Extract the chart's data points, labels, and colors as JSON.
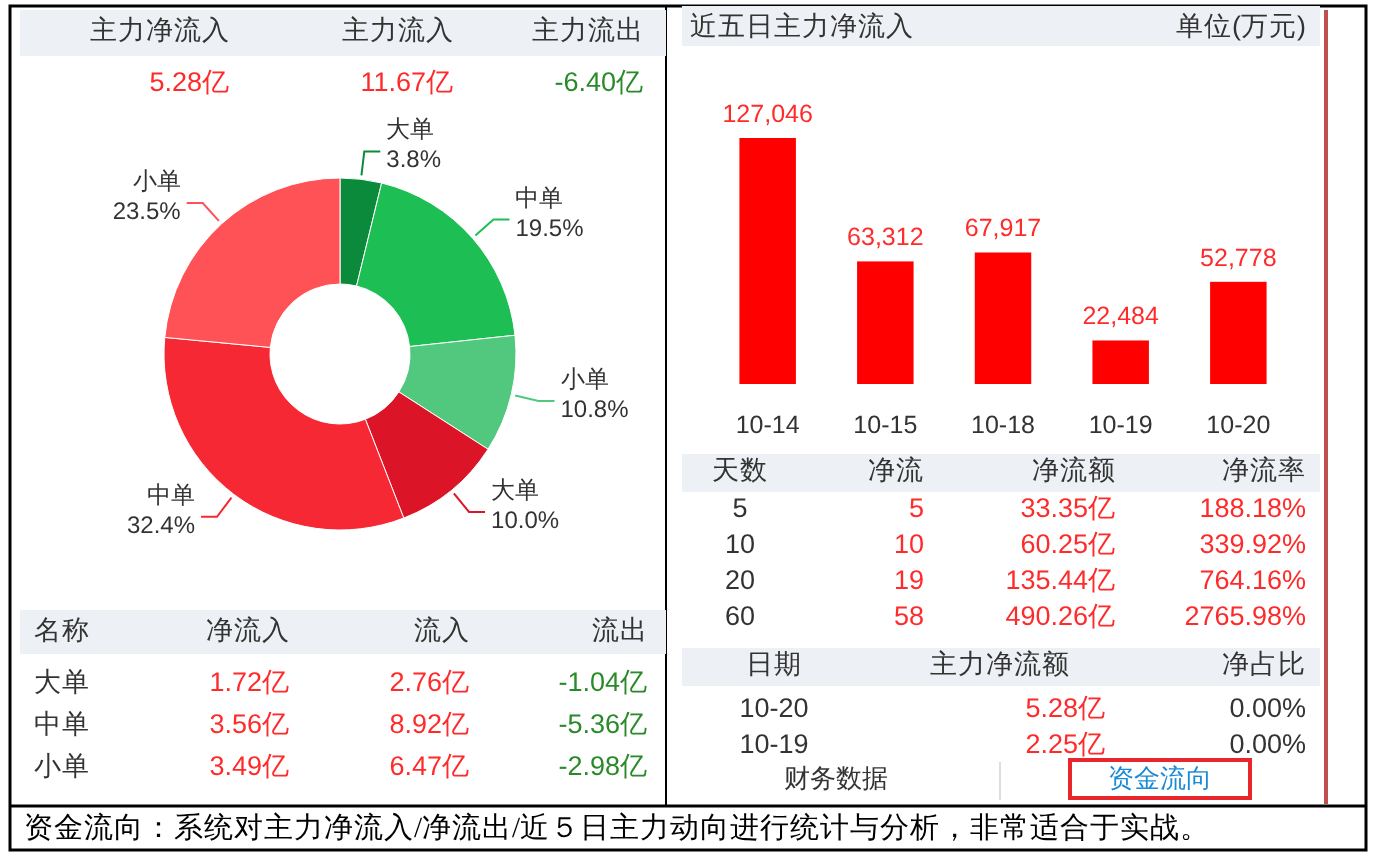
{
  "chart_data": [
    {
      "type": "other",
      "annotations": [
        "主力净流入",
        "主力流入",
        "主力流出",
        "5.28亿",
        "11.67亿",
        "-6.40亿"
      ]
    },
    {
      "type": "donut",
      "categories": [
        "大单",
        "中单",
        "小单",
        "大单",
        "中单",
        "小单"
      ],
      "values": [
        3.8,
        19.5,
        10.8,
        10.0,
        32.4,
        23.5
      ],
      "colors": [
        "#0b8a3c",
        "#1dbf55",
        "#52c77e",
        "#dc1428",
        "#f52834",
        "#ff5257"
      ],
      "value_labels": [
        "3.8%",
        "19.5%",
        "10.8%",
        "10.0%",
        "32.4%",
        "23.5%"
      ]
    },
    {
      "type": "other",
      "annotations": [
        "名称",
        "净流入",
        "流入",
        "流出",
        "大单",
        "1.72亿",
        "2.76亿",
        "-1.04亿",
        "中单",
        "3.56亿",
        "8.92亿",
        "-5.36亿",
        "小单",
        "3.49亿",
        "6.47亿",
        "-2.98亿"
      ]
    },
    {
      "type": "bar",
      "title": "近五日主力净流入",
      "subtitle": "单位(万元)",
      "categories": [
        "10-14",
        "10-15",
        "10-18",
        "10-19",
        "10-20"
      ],
      "values": [
        127046,
        63312,
        67917,
        22484,
        52778
      ],
      "color": "#ff0000",
      "value_labels": [
        "127,046",
        "63,312",
        "67,917",
        "22,484",
        "52,778"
      ]
    },
    {
      "type": "other",
      "annotations": [
        "天数",
        "净流",
        "净流额",
        "净流率",
        "5",
        "5",
        "33.35亿",
        "188.18%",
        "10",
        "10",
        "60.25亿",
        "339.92%",
        "20",
        "19",
        "135.44亿",
        "764.16%",
        "60",
        "58",
        "490.26亿",
        "2765.98%"
      ]
    },
    {
      "type": "other",
      "annotations": [
        "日期",
        "主力净流额",
        "净占比",
        "10-20",
        "5.28亿",
        "0.00%",
        "10-19",
        "2.25亿",
        "0.00%"
      ]
    },
    {
      "type": "other",
      "annotations": [
        "财务数据",
        "资金流向",
        "资金流向：系统对主力净流入/净流出/近５日主力动向进行统计与分析，非常适合于实战。"
      ]
    }
  ]
}
